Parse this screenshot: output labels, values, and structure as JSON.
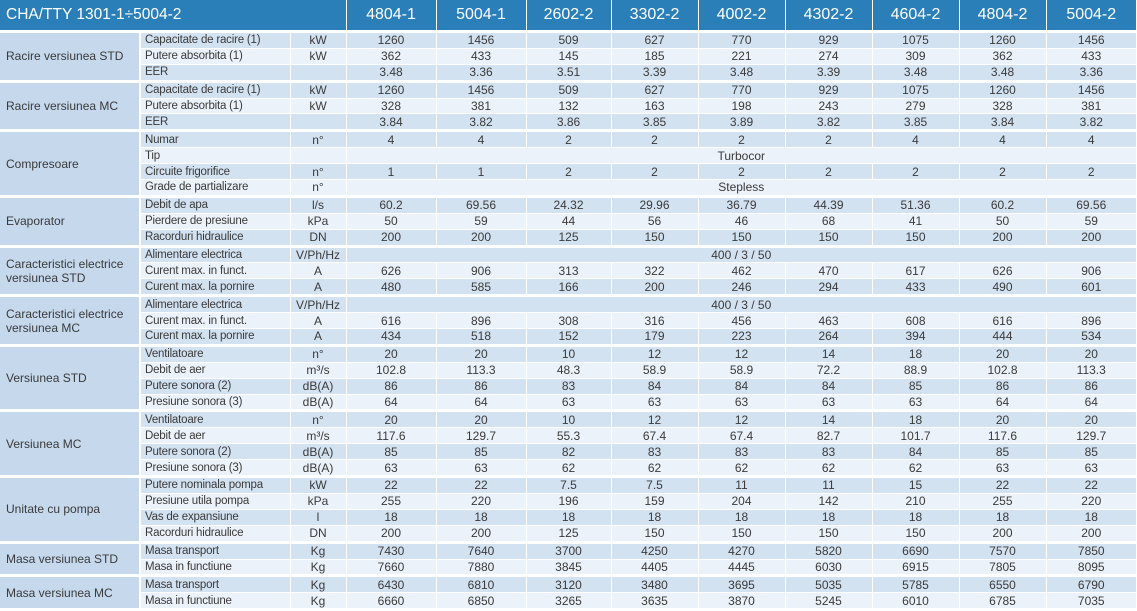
{
  "table": {
    "title": "CHA/TTY 1301-1÷5004-2",
    "columns": [
      "4804-1",
      "5004-1",
      "2602-2",
      "3302-2",
      "4002-2",
      "4302-2",
      "4604-2",
      "4804-2",
      "5004-2"
    ],
    "groups": [
      {
        "name": "Racire versiunea STD",
        "rows": [
          {
            "param": "Capacitate de racire (1)",
            "unit": "kW",
            "values": [
              "1260",
              "1456",
              "509",
              "627",
              "770",
              "929",
              "1075",
              "1260",
              "1456"
            ]
          },
          {
            "param": "Putere absorbita (1)",
            "unit": "kW",
            "values": [
              "362",
              "433",
              "145",
              "185",
              "221",
              "274",
              "309",
              "362",
              "433"
            ]
          },
          {
            "param": "EER",
            "unit": "",
            "values": [
              "3.48",
              "3.36",
              "3.51",
              "3.39",
              "3.48",
              "3.39",
              "3.48",
              "3.48",
              "3.36"
            ]
          }
        ]
      },
      {
        "name": "Racire versiunea MC",
        "rows": [
          {
            "param": "Capacitate de racire (1)",
            "unit": "kW",
            "values": [
              "1260",
              "1456",
              "509",
              "627",
              "770",
              "929",
              "1075",
              "1260",
              "1456"
            ]
          },
          {
            "param": "Putere absorbita (1)",
            "unit": "kW",
            "values": [
              "328",
              "381",
              "132",
              "163",
              "198",
              "243",
              "279",
              "328",
              "381"
            ]
          },
          {
            "param": "EER",
            "unit": "",
            "values": [
              "3.84",
              "3.82",
              "3.86",
              "3.85",
              "3.89",
              "3.82",
              "3.85",
              "3.84",
              "3.82"
            ]
          }
        ]
      },
      {
        "name": "Compresoare",
        "rows": [
          {
            "param": "Numar",
            "unit": "n°",
            "values": [
              "4",
              "4",
              "2",
              "2",
              "2",
              "2",
              "4",
              "4",
              "4"
            ]
          },
          {
            "param": "Tip",
            "unit": "",
            "span": "Turbocor"
          },
          {
            "param": "Circuite frigorifice",
            "unit": "n°",
            "values": [
              "1",
              "1",
              "2",
              "2",
              "2",
              "2",
              "2",
              "2",
              "2"
            ]
          },
          {
            "param": "Grade de partializare",
            "unit": "n°",
            "span": "Stepless"
          }
        ]
      },
      {
        "name": "Evaporator",
        "rows": [
          {
            "param": "Debit de apa",
            "unit": "l/s",
            "values": [
              "60.2",
              "69.56",
              "24.32",
              "29.96",
              "36.79",
              "44.39",
              "51.36",
              "60.2",
              "69.56"
            ]
          },
          {
            "param": "Pierdere de presiune",
            "unit": "kPa",
            "values": [
              "50",
              "59",
              "44",
              "56",
              "46",
              "68",
              "41",
              "50",
              "59"
            ]
          },
          {
            "param": "Racorduri hidraulice",
            "unit": "DN",
            "values": [
              "200",
              "200",
              "125",
              "150",
              "150",
              "150",
              "150",
              "200",
              "200"
            ]
          }
        ]
      },
      {
        "name": "Caracteristici electrice versiunea STD",
        "rows": [
          {
            "param": "Alimentare electrica",
            "unit": "V/Ph/Hz",
            "span": "400 / 3 / 50"
          },
          {
            "param": "Curent max. in funct.",
            "unit": "A",
            "values": [
              "626",
              "906",
              "313",
              "322",
              "462",
              "470",
              "617",
              "626",
              "906"
            ]
          },
          {
            "param": "Curent max. la pornire",
            "unit": "A",
            "values": [
              "480",
              "585",
              "166",
              "200",
              "246",
              "294",
              "433",
              "490",
              "601"
            ]
          }
        ]
      },
      {
        "name": "Caracteristici electrice versiunea MC",
        "rows": [
          {
            "param": "Alimentare electrica",
            "unit": "V/Ph/Hz",
            "span": "400 / 3 / 50"
          },
          {
            "param": "Curent max. in funct.",
            "unit": "A",
            "values": [
              "616",
              "896",
              "308",
              "316",
              "456",
              "463",
              "608",
              "616",
              "896"
            ]
          },
          {
            "param": "Curent max. la pornire",
            "unit": "A",
            "values": [
              "434",
              "518",
              "152",
              "179",
              "223",
              "264",
              "394",
              "444",
              "534"
            ]
          }
        ]
      },
      {
        "name": "Versiunea STD",
        "rows": [
          {
            "param": "Ventilatoare",
            "unit": "n°",
            "values": [
              "20",
              "20",
              "10",
              "12",
              "12",
              "14",
              "18",
              "20",
              "20"
            ]
          },
          {
            "param": "Debit de aer",
            "unit": "m³/s",
            "values": [
              "102.8",
              "113.3",
              "48.3",
              "58.9",
              "58.9",
              "72.2",
              "88.9",
              "102.8",
              "113.3"
            ]
          },
          {
            "param": "Putere sonora (2)",
            "unit": "dB(A)",
            "values": [
              "86",
              "86",
              "83",
              "84",
              "84",
              "84",
              "85",
              "86",
              "86"
            ]
          },
          {
            "param": "Presiune sonora (3)",
            "unit": "dB(A)",
            "values": [
              "64",
              "64",
              "63",
              "63",
              "63",
              "63",
              "63",
              "64",
              "64"
            ]
          }
        ]
      },
      {
        "name": "Versiunea MC",
        "rows": [
          {
            "param": "Ventilatoare",
            "unit": "n°",
            "values": [
              "20",
              "20",
              "10",
              "12",
              "12",
              "14",
              "18",
              "20",
              "20"
            ]
          },
          {
            "param": "Debit de aer",
            "unit": "m³/s",
            "values": [
              "117.6",
              "129.7",
              "55.3",
              "67.4",
              "67.4",
              "82.7",
              "101.7",
              "117.6",
              "129.7"
            ]
          },
          {
            "param": "Putere sonora (2)",
            "unit": "dB(A)",
            "values": [
              "85",
              "85",
              "82",
              "83",
              "83",
              "83",
              "84",
              "85",
              "85"
            ]
          },
          {
            "param": "Presiune sonora (3)",
            "unit": "dB(A)",
            "values": [
              "63",
              "63",
              "62",
              "62",
              "62",
              "62",
              "62",
              "63",
              "63"
            ]
          }
        ]
      },
      {
        "name": "Unitate cu pompa",
        "rows": [
          {
            "param": "Putere nominala pompa",
            "unit": "kW",
            "values": [
              "22",
              "22",
              "7.5",
              "7.5",
              "11",
              "11",
              "15",
              "22",
              "22"
            ]
          },
          {
            "param": "Presiune utila pompa",
            "unit": "kPa",
            "values": [
              "255",
              "220",
              "196",
              "159",
              "204",
              "142",
              "210",
              "255",
              "220"
            ]
          },
          {
            "param": "Vas de expansiune",
            "unit": "l",
            "values": [
              "18",
              "18",
              "18",
              "18",
              "18",
              "18",
              "18",
              "18",
              "18"
            ]
          },
          {
            "param": "Racorduri hidraulice",
            "unit": "DN",
            "values": [
              "200",
              "200",
              "125",
              "150",
              "150",
              "150",
              "150",
              "200",
              "200"
            ]
          }
        ]
      },
      {
        "name": "Masa versiunea STD",
        "rows": [
          {
            "param": "Masa transport",
            "unit": "Kg",
            "values": [
              "7430",
              "7640",
              "3700",
              "4250",
              "4270",
              "5820",
              "6690",
              "7570",
              "7850"
            ]
          },
          {
            "param": "Masa in functiune",
            "unit": "Kg",
            "values": [
              "7660",
              "7880",
              "3845",
              "4405",
              "4445",
              "6030",
              "6915",
              "7805",
              "8095"
            ]
          }
        ]
      },
      {
        "name": "Masa versiunea MC",
        "rows": [
          {
            "param": "Masa transport",
            "unit": "Kg",
            "values": [
              "6430",
              "6810",
              "3120",
              "3480",
              "3695",
              "5035",
              "5785",
              "6550",
              "6790"
            ]
          },
          {
            "param": "Masa in functiune",
            "unit": "Kg",
            "values": [
              "6660",
              "6850",
              "3265",
              "3635",
              "3870",
              "5245",
              "6010",
              "6785",
              "7035"
            ]
          }
        ]
      }
    ]
  }
}
